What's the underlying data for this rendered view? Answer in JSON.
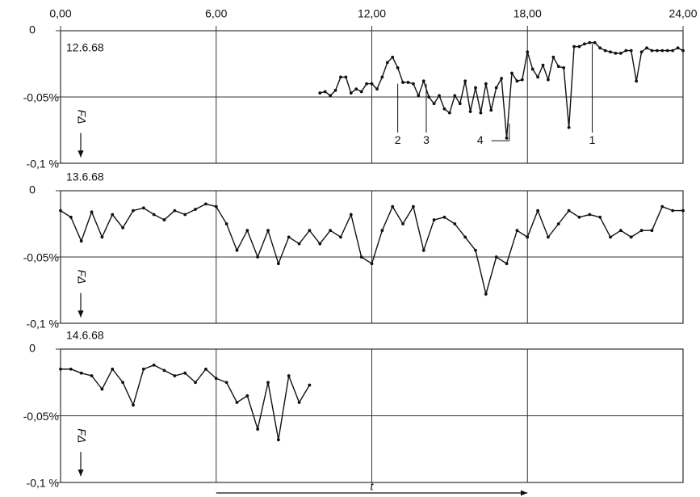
{
  "chart_data": [
    {
      "type": "line",
      "title": "12.6.68",
      "ylabel": "FΔ",
      "xlim": [
        0,
        24
      ],
      "ylim": [
        -0.1,
        0
      ],
      "xticks": [
        {
          "value": 0,
          "label": "0,00"
        },
        {
          "value": 6,
          "label": "6,00"
        },
        {
          "value": 12,
          "label": "12,00"
        },
        {
          "value": 18,
          "label": "18,00"
        },
        {
          "value": 24,
          "label": "24,00"
        }
      ],
      "yticks": [
        0,
        {
          "value": -0.05,
          "label": "-0,05%"
        },
        {
          "value": -0.1,
          "label": "-0,1 %"
        }
      ],
      "grid": true,
      "color": "#111111",
      "x": [
        10.0,
        10.2,
        10.4,
        10.6,
        10.8,
        11.0,
        11.2,
        11.4,
        11.6,
        11.8,
        12.0,
        12.2,
        12.4,
        12.6,
        12.8,
        13.0,
        13.2,
        13.4,
        13.6,
        13.8,
        14.0,
        14.2,
        14.4,
        14.6,
        14.8,
        15.0,
        15.2,
        15.4,
        15.6,
        15.8,
        16.0,
        16.2,
        16.4,
        16.6,
        16.8,
        17.0,
        17.2,
        17.4,
        17.6,
        17.8,
        18.0,
        18.2,
        18.4,
        18.6,
        18.8,
        19.0,
        19.2,
        19.4,
        19.6,
        19.8,
        20.0,
        20.2,
        20.4,
        20.6,
        20.8,
        21.0,
        21.2,
        21.4,
        21.6,
        21.8,
        22.0,
        22.2,
        22.4,
        22.6,
        22.8,
        23.0,
        23.2,
        23.4,
        23.6,
        23.8,
        24.0
      ],
      "values": [
        -0.047,
        -0.046,
        -0.049,
        -0.045,
        -0.035,
        -0.035,
        -0.047,
        -0.044,
        -0.046,
        -0.04,
        -0.04,
        -0.044,
        -0.035,
        -0.024,
        -0.02,
        -0.028,
        -0.039,
        -0.039,
        -0.04,
        -0.049,
        -0.038,
        -0.05,
        -0.055,
        -0.049,
        -0.059,
        -0.062,
        -0.049,
        -0.055,
        -0.038,
        -0.061,
        -0.043,
        -0.062,
        -0.04,
        -0.06,
        -0.043,
        -0.036,
        -0.081,
        -0.032,
        -0.038,
        -0.037,
        -0.016,
        -0.029,
        -0.035,
        -0.026,
        -0.037,
        -0.02,
        -0.027,
        -0.028,
        -0.073,
        -0.012,
        -0.012,
        -0.01,
        -0.009,
        -0.009,
        -0.013,
        -0.015,
        -0.016,
        -0.017,
        -0.017,
        -0.015,
        -0.015,
        -0.038,
        -0.016,
        -0.013,
        -0.015,
        -0.015,
        -0.015,
        -0.015,
        -0.015,
        -0.013,
        -0.015
      ],
      "annotations": [
        {
          "text": "2",
          "x": 13.0
        },
        {
          "text": "3",
          "x": 14.1
        },
        {
          "text": "4",
          "x": 17.3
        },
        {
          "text": "1",
          "x": 20.5
        }
      ]
    },
    {
      "type": "line",
      "title": "13.6.68",
      "ylabel": "FΔ",
      "xlim": [
        0,
        24
      ],
      "ylim": [
        -0.1,
        0
      ],
      "yticks": [
        0,
        {
          "value": -0.05,
          "label": "-0,05%"
        },
        {
          "value": -0.1,
          "label": "-0,1 %"
        }
      ],
      "grid": true,
      "color": "#111111",
      "x": [
        0,
        0.4,
        0.8,
        1.2,
        1.6,
        2.0,
        2.4,
        2.8,
        3.2,
        3.6,
        4.0,
        4.4,
        4.8,
        5.2,
        5.6,
        6.0,
        6.4,
        6.8,
        7.2,
        7.6,
        8.0,
        8.4,
        8.8,
        9.2,
        9.6,
        10.0,
        10.4,
        10.8,
        11.2,
        11.6,
        12.0,
        12.4,
        12.8,
        13.2,
        13.6,
        14.0,
        14.4,
        14.8,
        15.2,
        15.6,
        16.0,
        16.4,
        16.8,
        17.2,
        17.6,
        18.0,
        18.4,
        18.8,
        19.2,
        19.6,
        20.0,
        20.4,
        20.8,
        21.2,
        21.6,
        22.0,
        22.4,
        22.8,
        23.2,
        23.6,
        24.0
      ],
      "values": [
        -0.015,
        -0.02,
        -0.038,
        -0.016,
        -0.035,
        -0.018,
        -0.028,
        -0.015,
        -0.013,
        -0.018,
        -0.022,
        -0.015,
        -0.018,
        -0.014,
        -0.01,
        -0.012,
        -0.025,
        -0.045,
        -0.03,
        -0.05,
        -0.03,
        -0.055,
        -0.035,
        -0.04,
        -0.03,
        -0.04,
        -0.03,
        -0.035,
        -0.018,
        -0.05,
        -0.055,
        -0.03,
        -0.012,
        -0.025,
        -0.012,
        -0.045,
        -0.022,
        -0.02,
        -0.025,
        -0.035,
        -0.045,
        -0.078,
        -0.05,
        -0.055,
        -0.03,
        -0.035,
        -0.015,
        -0.035,
        -0.025,
        -0.015,
        -0.02,
        -0.018,
        -0.02,
        -0.035,
        -0.03,
        -0.035,
        -0.03,
        -0.03,
        -0.012,
        -0.015,
        -0.015
      ]
    },
    {
      "type": "line",
      "title": "14.6.68",
      "ylabel": "FΔ",
      "xlabel": "t",
      "xlim": [
        0,
        24
      ],
      "ylim": [
        -0.1,
        0
      ],
      "yticks": [
        0,
        {
          "value": -0.05,
          "label": "-0,05%"
        },
        {
          "value": -0.1,
          "label": "-0,1 %"
        }
      ],
      "grid": true,
      "color": "#111111",
      "x": [
        0,
        0.4,
        0.8,
        1.2,
        1.6,
        2.0,
        2.4,
        2.8,
        3.2,
        3.6,
        4.0,
        4.4,
        4.8,
        5.2,
        5.6,
        6.0,
        6.4,
        6.8,
        7.2,
        7.6,
        8.0,
        8.4,
        8.8,
        9.2,
        9.6
      ],
      "values": [
        -0.015,
        -0.015,
        -0.018,
        -0.02,
        -0.03,
        -0.015,
        -0.025,
        -0.042,
        -0.015,
        -0.012,
        -0.016,
        -0.02,
        -0.018,
        -0.025,
        -0.015,
        -0.022,
        -0.025,
        -0.04,
        -0.035,
        -0.06,
        -0.025,
        -0.068,
        -0.02,
        -0.04,
        -0.027
      ]
    }
  ]
}
